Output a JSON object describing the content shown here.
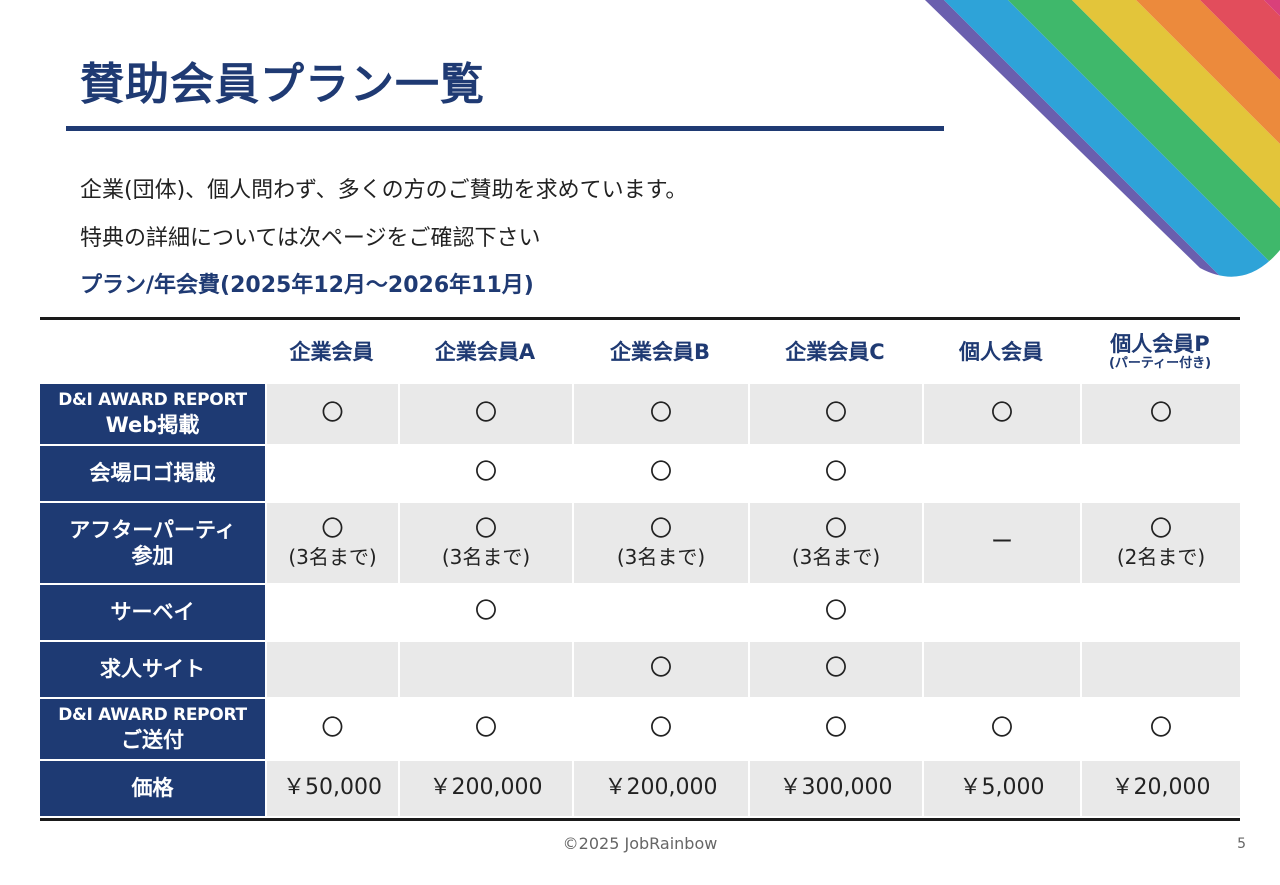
{
  "title": "賛助会員プラン一覧",
  "intro_lines": [
    "企業(団体)、個人問わず、多くの方のご賛助を求めています。",
    "特典の詳細については次ページをご確認下さい"
  ],
  "plan_heading": "プラン/年会費(2025年12月〜2026年11月)",
  "colors": {
    "brand_navy": "#1e3a73",
    "row_grey": "#e9e9e9",
    "rainbow": [
      "#6a5fae",
      "#2ea3d8",
      "#3fb86b",
      "#e3c53a",
      "#ec8a3c",
      "#e24d5c",
      "#d9407a"
    ]
  },
  "table": {
    "columns": [
      {
        "name": "企業会員",
        "sub": ""
      },
      {
        "name": "企業会員A",
        "sub": ""
      },
      {
        "name": "企業会員B",
        "sub": ""
      },
      {
        "name": "企業会員C",
        "sub": ""
      },
      {
        "name": "個人会員",
        "sub": ""
      },
      {
        "name": "個人会員P",
        "sub": "(パーティー付き)"
      }
    ],
    "rows": [
      {
        "feature": [
          "D&I AWARD REPORT",
          "Web掲載"
        ],
        "cells": [
          [
            "〇"
          ],
          [
            "〇"
          ],
          [
            "〇"
          ],
          [
            "〇"
          ],
          [
            "〇"
          ],
          [
            "〇"
          ]
        ]
      },
      {
        "feature": [
          "会場ロゴ掲載"
        ],
        "cells": [
          [],
          [
            "〇"
          ],
          [
            "〇"
          ],
          [
            "〇"
          ],
          [],
          []
        ]
      },
      {
        "feature": [
          "アフターパーティ",
          "参加"
        ],
        "cells": [
          [
            "〇",
            "(3名まで)"
          ],
          [
            "〇",
            "(3名まで)"
          ],
          [
            "〇",
            "(3名まで)"
          ],
          [
            "〇",
            "(3名まで)"
          ],
          [
            "ー"
          ],
          [
            "〇",
            "(2名まで)"
          ]
        ]
      },
      {
        "feature": [
          "サーベイ"
        ],
        "cells": [
          [],
          [
            "〇"
          ],
          [],
          [
            "〇"
          ],
          [],
          []
        ]
      },
      {
        "feature": [
          "求人サイト"
        ],
        "cells": [
          [],
          [],
          [
            "〇"
          ],
          [
            "〇"
          ],
          [],
          []
        ]
      },
      {
        "feature": [
          "D&I AWARD REPORT",
          "ご送付"
        ],
        "cells": [
          [
            "〇"
          ],
          [
            "〇"
          ],
          [
            "〇"
          ],
          [
            "〇"
          ],
          [
            "〇"
          ],
          [
            "〇"
          ]
        ]
      },
      {
        "feature": [
          "価格"
        ],
        "cells": [
          [
            "￥50,000"
          ],
          [
            "￥200,000"
          ],
          [
            "￥200,000"
          ],
          [
            "￥300,000"
          ],
          [
            "￥5,000"
          ],
          [
            "￥20,000"
          ]
        ]
      }
    ]
  },
  "footer": "©2025 JobRainbow",
  "page_number": "5"
}
